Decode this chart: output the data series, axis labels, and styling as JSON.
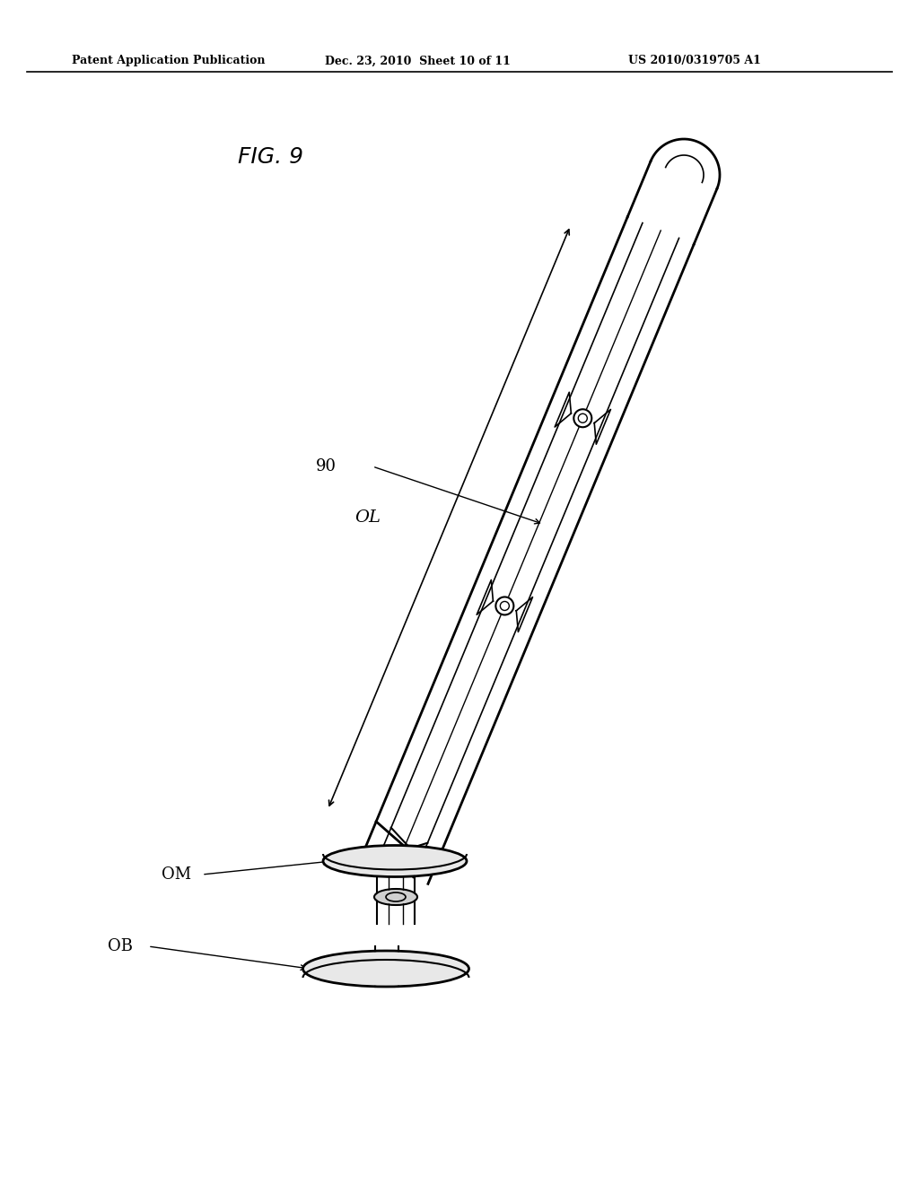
{
  "bg_color": "#ffffff",
  "header_line1": "Patent Application Publication",
  "header_line2": "Dec. 23, 2010  Sheet 10 of 11",
  "header_line3": "US 2010/0319705 A1",
  "fig_label": "FIG. 9",
  "label_90": "90",
  "label_OL": "OL",
  "label_OM": "OM",
  "label_OB": "OB",
  "line_color": "#000000",
  "text_color": "#000000"
}
